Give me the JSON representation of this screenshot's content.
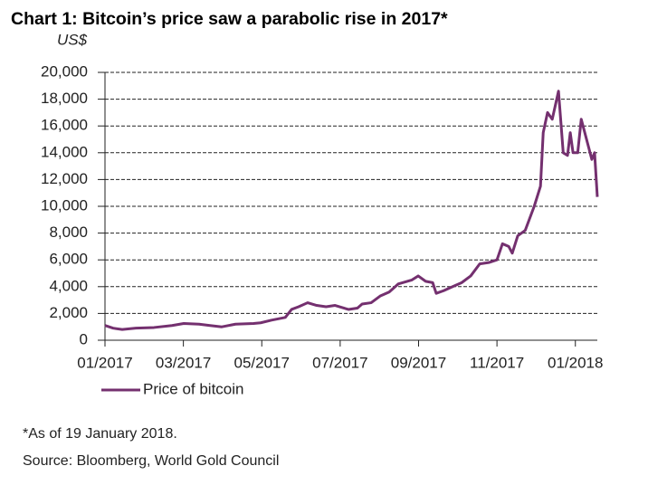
{
  "chart_data": {
    "type": "line",
    "title": "Chart 1: Bitcoin’s price saw a parabolic rise in 2017*",
    "y_label": "US$",
    "footnote": "*As of 19 January 2018.",
    "source": "Source: Bloomberg, World Gold Council",
    "x": [
      0,
      0.21,
      0.44,
      0.79,
      1.25,
      1.71,
      2.01,
      2.4,
      2.68,
      2.98,
      3.33,
      3.79,
      3.97,
      4.25,
      4.6,
      4.76,
      4.94,
      5.17,
      5.4,
      5.64,
      5.87,
      6.21,
      6.44,
      6.56,
      6.79,
      7.02,
      7.25,
      7.48,
      7.83,
      7.99,
      8.18,
      8.36,
      8.45,
      8.64,
      8.87,
      9.1,
      9.33,
      9.56,
      9.79,
      10,
      10.14,
      10.3,
      10.39,
      10.53,
      10.72,
      10.95,
      11.11,
      11.18,
      11.29,
      11.41,
      11.57,
      11.69,
      11.8,
      11.87,
      11.94,
      12.06,
      12.15,
      12.33,
      12.42,
      12.49,
      12.56
    ],
    "series": [
      {
        "name": "Price of bitcoin",
        "color": "#74306f",
        "values": [
          1100,
          900,
          800,
          900,
          950,
          1100,
          1250,
          1200,
          1100,
          1000,
          1200,
          1250,
          1300,
          1500,
          1700,
          2300,
          2500,
          2800,
          2600,
          2500,
          2600,
          2300,
          2400,
          2700,
          2800,
          3300,
          3600,
          4200,
          4500,
          4800,
          4400,
          4300,
          3500,
          3700,
          4000,
          4300,
          4800,
          5700,
          5800,
          6000,
          7200,
          7000,
          6500,
          7800,
          8200,
          10000,
          11500,
          15500,
          17000,
          16500,
          18600,
          14000,
          13800,
          15500,
          14000,
          14000,
          16500,
          14500,
          13500,
          14000,
          10700
        ]
      }
    ],
    "xlim": [
      0,
      12.56
    ],
    "xticks": [
      {
        "value": 0,
        "label": "01/2017"
      },
      {
        "value": 2,
        "label": "03/2017"
      },
      {
        "value": 4,
        "label": "05/2017"
      },
      {
        "value": 6,
        "label": "07/2017"
      },
      {
        "value": 8,
        "label": "09/2017"
      },
      {
        "value": 10,
        "label": "11/2017"
      },
      {
        "value": 12,
        "label": "01/2018"
      }
    ],
    "ylim": [
      0,
      20000
    ],
    "yticks": [
      0,
      {
        "value": 2000,
        "label": "2,000"
      },
      {
        "value": 4000,
        "label": "4,000"
      },
      {
        "value": 6000,
        "label": "6,000"
      },
      {
        "value": 8000,
        "label": "8,000"
      },
      {
        "value": 10000,
        "label": "10,000"
      },
      {
        "value": 12000,
        "label": "12,000"
      },
      {
        "value": 14000,
        "label": "14,000"
      },
      {
        "value": 16000,
        "label": "16,000"
      },
      {
        "value": 18000,
        "label": "18,000"
      },
      {
        "value": 20000,
        "label": "20,000"
      }
    ],
    "grid": true
  }
}
